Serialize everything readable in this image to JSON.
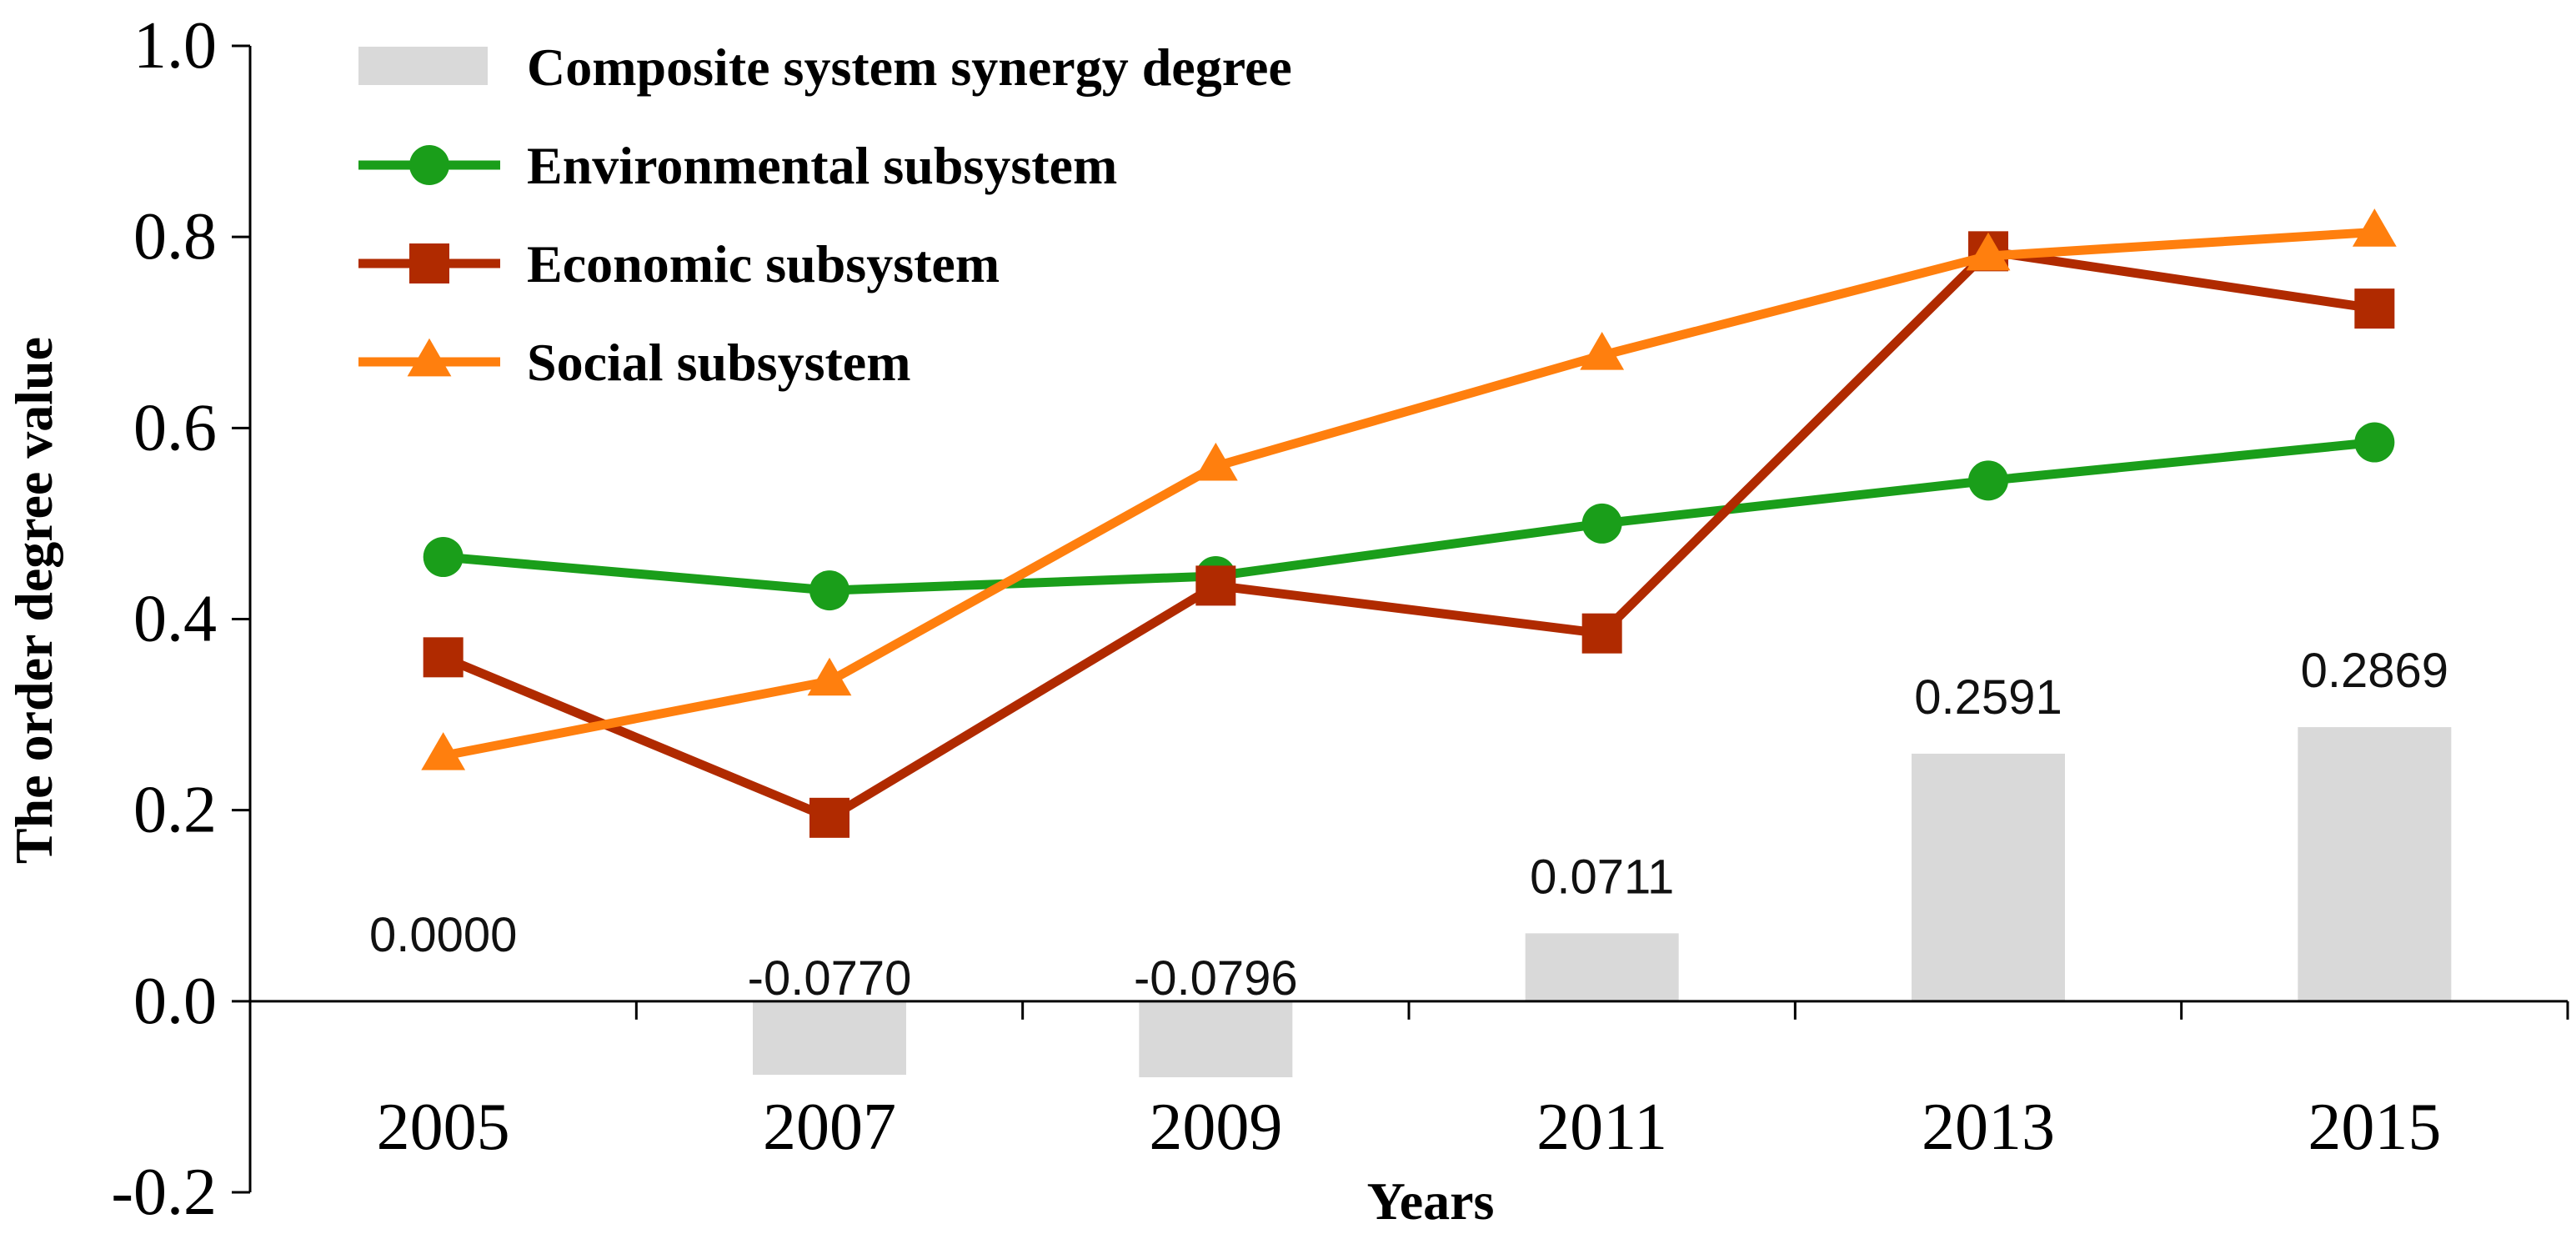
{
  "chart_data": {
    "type": "bar+line",
    "title": "",
    "xlabel": "Years",
    "ylabel": "The order degree  value",
    "ylim": [
      -0.2,
      1.0
    ],
    "yticks": [
      "-0.2",
      "0.0",
      "0.2",
      "0.4",
      "0.6",
      "0.8",
      "1.0"
    ],
    "yticks_values": [
      -0.2,
      0.0,
      0.2,
      0.4,
      0.6,
      0.8,
      1.0
    ],
    "categories": [
      "2005",
      "2007",
      "2009",
      "2011",
      "2013",
      "2015"
    ],
    "legend_position": "top-left",
    "bars": {
      "name": "Composite system synergy degree",
      "color": "#d9d9d9",
      "values": [
        0.0,
        -0.077,
        -0.0796,
        0.0711,
        0.2591,
        0.2869
      ],
      "labels": [
        "0.0000",
        "-0.0770",
        "-0.0796",
        "0.0711",
        "0.2591",
        "0.2869"
      ]
    },
    "series": [
      {
        "name": "Environmental subsystem",
        "color": "#1a9e1a",
        "marker": "circle",
        "values": [
          0.465,
          0.43,
          0.445,
          0.5,
          0.545,
          0.585
        ]
      },
      {
        "name": "Economic subsystem",
        "color": "#b02a00",
        "marker": "square",
        "values": [
          0.36,
          0.192,
          0.435,
          0.385,
          0.785,
          0.725
        ]
      },
      {
        "name": "Social subsystem",
        "color": "#ff7f0e",
        "marker": "triangle",
        "values": [
          0.257,
          0.335,
          0.56,
          0.676,
          0.78,
          0.805
        ]
      }
    ]
  }
}
